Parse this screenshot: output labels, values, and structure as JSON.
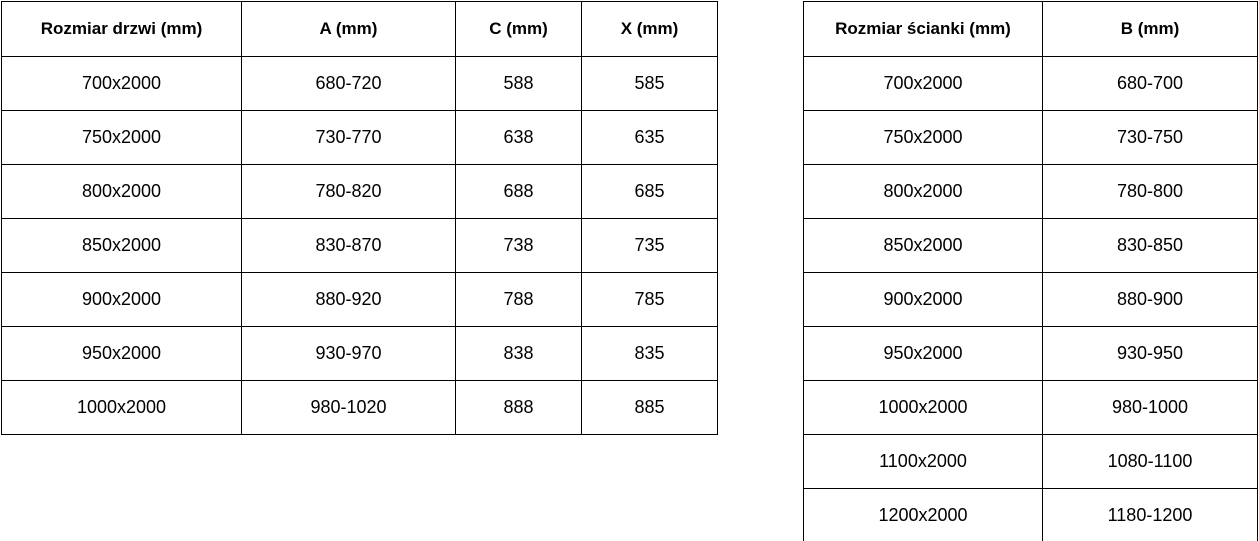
{
  "colors": {
    "border": "#000000",
    "text": "#000000",
    "background": "#ffffff"
  },
  "tables": [
    {
      "name": "door-size-table",
      "headers": [
        "Rozmiar drzwi (mm)",
        "A (mm)",
        "C (mm)",
        "X (mm)"
      ],
      "rows": [
        [
          "700x2000",
          "680-720",
          "588",
          "585"
        ],
        [
          "750x2000",
          "730-770",
          "638",
          "635"
        ],
        [
          "800x2000",
          "780-820",
          "688",
          "685"
        ],
        [
          "850x2000",
          "830-870",
          "738",
          "735"
        ],
        [
          "900x2000",
          "880-920",
          "788",
          "785"
        ],
        [
          "950x2000",
          "930-970",
          "838",
          "835"
        ],
        [
          "1000x2000",
          "980-1020",
          "888",
          "885"
        ]
      ]
    },
    {
      "name": "wall-size-table",
      "headers": [
        "Rozmiar ścianki (mm)",
        "B (mm)"
      ],
      "rows": [
        [
          "700x2000",
          "680-700"
        ],
        [
          "750x2000",
          "730-750"
        ],
        [
          "800x2000",
          "780-800"
        ],
        [
          "850x2000",
          "830-850"
        ],
        [
          "900x2000",
          "880-900"
        ],
        [
          "950x2000",
          "930-950"
        ],
        [
          "1000x2000",
          "980-1000"
        ],
        [
          "1100x2000",
          "1080-1100"
        ],
        [
          "1200x2000",
          "1180-1200"
        ]
      ]
    }
  ]
}
